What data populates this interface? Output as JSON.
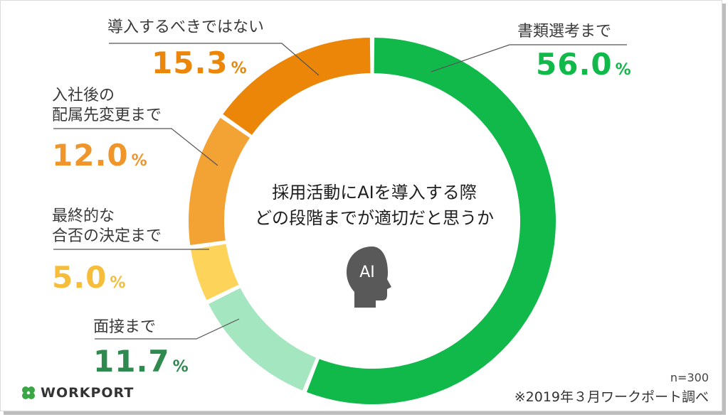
{
  "chart_data": {
    "type": "donut",
    "title_lines": [
      "採用活動にAIを導入する際",
      "どの段階までが適切だと思うか"
    ],
    "center_icon_label": "AI",
    "unit": "%",
    "slices": [
      {
        "label": "書類選考まで",
        "value": 56.0,
        "display": "56.0",
        "color": "#10b94a"
      },
      {
        "label": "面接まで",
        "value": 11.7,
        "display": "11.7",
        "color": "#a4e6c0",
        "text_color": "#2e8a4e"
      },
      {
        "label": "最終的な合否の決定まで",
        "label_lines": [
          "最終的な",
          "合否の決定まで"
        ],
        "value": 5.0,
        "display": "5.0",
        "color": "#fdd35a",
        "text_color": "#f5bd3a"
      },
      {
        "label": "入社後の配属先変更まで",
        "label_lines": [
          "入社後の",
          "配属先変更まで"
        ],
        "value": 12.0,
        "display": "12.0",
        "color": "#f3a234",
        "text_color": "#f0952a"
      },
      {
        "label": "導入するべきではない",
        "value": 15.3,
        "display": "15.3",
        "color": "#ec8608",
        "text_color": "#ec8608"
      }
    ]
  },
  "footer": {
    "sample": "n=300",
    "source": "※2019年３月ワークポート調べ",
    "logo_text": "WORKPORT"
  }
}
